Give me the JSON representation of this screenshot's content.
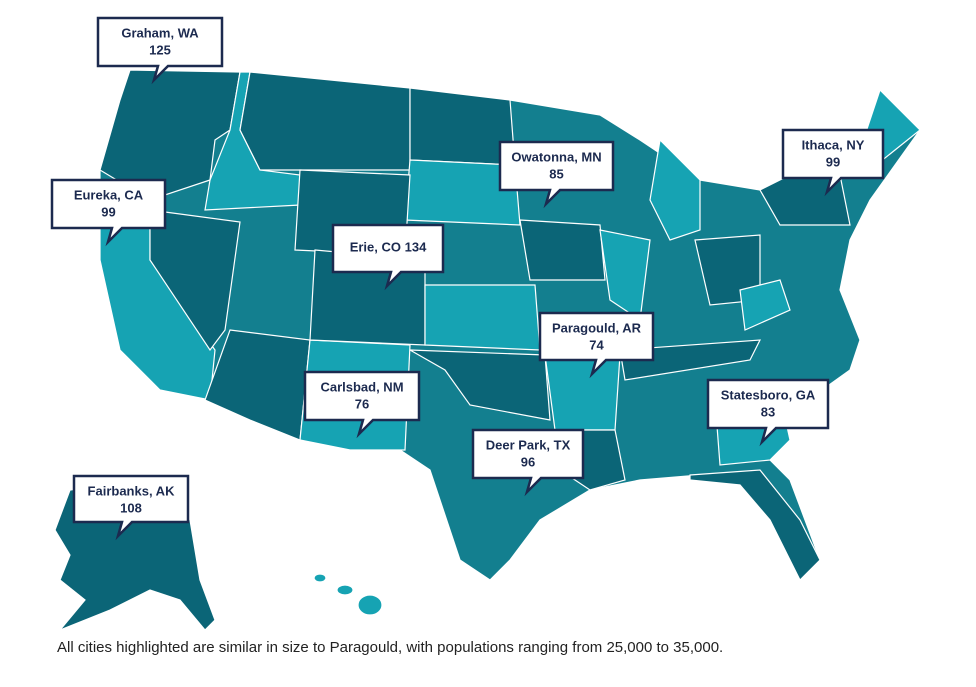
{
  "callouts": [
    {
      "city": "Graham, WA",
      "value": 125
    },
    {
      "city": "Eureka, CA",
      "value": 99
    },
    {
      "city": "Owatonna, MN",
      "value": 85
    },
    {
      "city": "Ithaca, NY",
      "value": 99
    },
    {
      "city": "Erie, CO",
      "value": 134
    },
    {
      "city": "Paragould, AR",
      "value": 74
    },
    {
      "city": "Carlsbad, NM",
      "value": 76
    },
    {
      "city": "Statesboro, GA",
      "value": 83
    },
    {
      "city": "Deer Park, TX",
      "value": 96
    },
    {
      "city": "Fairbanks, AK",
      "value": 108
    }
  ],
  "footnote": "All cities highlighted are similar in size to Paragould, with populations ranging from 25,000 to 35,000."
}
